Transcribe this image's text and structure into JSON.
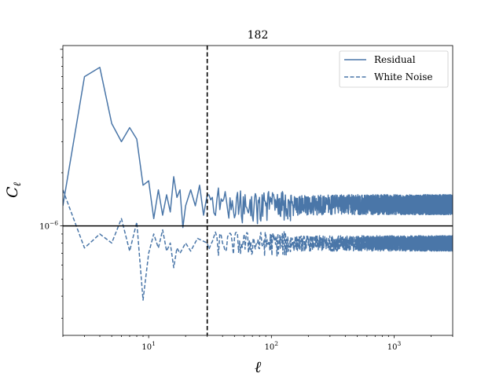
{
  "chart_data": {
    "type": "line",
    "title": "182",
    "xlabel": "ℓ",
    "ylabel": "C_ℓ",
    "x_scale": "log",
    "y_scale": "log",
    "xlim": [
      2,
      3000
    ],
    "ylim": [
      2.4e-07,
      1.05e-05
    ],
    "x_tick_labels": [
      {
        "value": 10,
        "label": "10^1"
      },
      {
        "value": 100,
        "label": "10^2"
      },
      {
        "value": 1000,
        "label": "10^3"
      }
    ],
    "y_tick_labels": [
      {
        "value": 1e-06,
        "label": "10^-6"
      }
    ],
    "vline": {
      "x": 30,
      "style": "dashed",
      "color": "#000000"
    },
    "hline": {
      "y": 1e-06,
      "style": "solid",
      "color": "#000000"
    },
    "legend": {
      "position": "top-right",
      "entries": [
        "Residual",
        "White Noise"
      ]
    },
    "grid": false,
    "series": [
      {
        "name": "Residual",
        "style": "solid",
        "color": "#4a76a8",
        "anchors": [
          [
            2,
            1.3e-06
          ],
          [
            3,
            7e-06
          ],
          [
            4,
            7.9e-06
          ],
          [
            5,
            3.8e-06
          ],
          [
            6,
            3e-06
          ],
          [
            7,
            3.6e-06
          ],
          [
            7.5,
            2.4e-06
          ],
          [
            8,
            3.1e-06
          ],
          [
            9,
            1.7e-06
          ],
          [
            10,
            1.8e-06
          ],
          [
            11,
            1.1e-06
          ],
          [
            12,
            1.6e-06
          ],
          [
            13,
            1.15e-06
          ],
          [
            14,
            1.5e-06
          ],
          [
            15,
            1.2e-06
          ],
          [
            16,
            1.9e-06
          ],
          [
            17,
            1.45e-06
          ],
          [
            18,
            1.6e-06
          ],
          [
            19,
            9.8e-07
          ],
          [
            20,
            1.3e-06
          ],
          [
            22,
            1.6e-06
          ],
          [
            24,
            1.3e-06
          ],
          [
            26,
            1.7e-06
          ],
          [
            28,
            1.15e-06
          ],
          [
            30,
            1.5e-06
          ],
          [
            40,
            1.35e-06
          ],
          [
            60,
            1.3e-06
          ],
          [
            100,
            1.3e-06
          ],
          [
            200,
            1.32e-06
          ],
          [
            400,
            1.33e-06
          ],
          [
            1000,
            1.33e-06
          ],
          [
            3000,
            1.33e-06
          ]
        ],
        "scatter_frac": 0.13
      },
      {
        "name": "White Noise",
        "style": "dashed",
        "color": "#4a76a8",
        "anchors": [
          [
            2,
            1.6e-06
          ],
          [
            3,
            7.5e-07
          ],
          [
            4,
            9e-07
          ],
          [
            5,
            8e-07
          ],
          [
            6,
            1.1e-06
          ],
          [
            7,
            7.2e-07
          ],
          [
            8,
            1.05e-06
          ],
          [
            9,
            3.8e-07
          ],
          [
            10,
            7e-07
          ],
          [
            11,
            9e-07
          ],
          [
            12,
            7.5e-07
          ],
          [
            13,
            9.5e-07
          ],
          [
            14,
            7.2e-07
          ],
          [
            15,
            8e-07
          ],
          [
            16,
            5.8e-07
          ],
          [
            17,
            7.5e-07
          ],
          [
            18,
            7e-07
          ],
          [
            20,
            8e-07
          ],
          [
            22,
            7.2e-07
          ],
          [
            25,
            8.5e-07
          ],
          [
            30,
            8e-07
          ],
          [
            40,
            8e-07
          ],
          [
            60,
            8e-07
          ],
          [
            100,
            8e-07
          ],
          [
            300,
            8e-07
          ],
          [
            1000,
            8e-07
          ],
          [
            3000,
            8e-07
          ]
        ],
        "scatter_frac": 0.1
      }
    ]
  }
}
